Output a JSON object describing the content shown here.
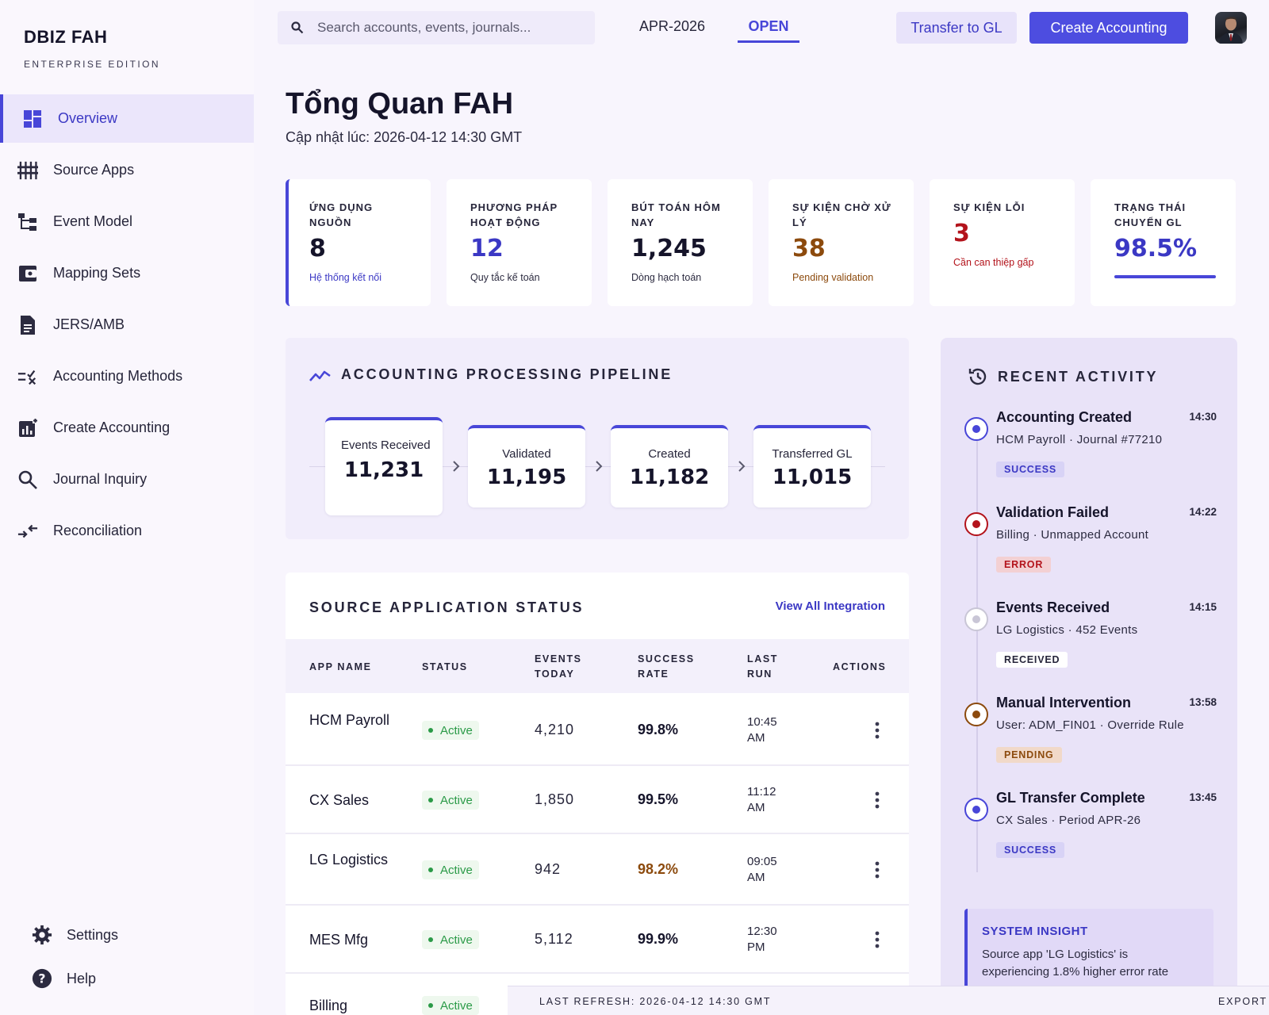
{
  "brand": {
    "name": "DBIZ FAH",
    "edition": "ENTERPRISE EDITION"
  },
  "sidebar": {
    "items": [
      {
        "label": "Overview",
        "icon": "dashboard-icon",
        "active": true
      },
      {
        "label": "Source Apps",
        "icon": "sliders-icon"
      },
      {
        "label": "Event Model",
        "icon": "hierarchy-icon"
      },
      {
        "label": "Mapping Sets",
        "icon": "wallet-icon"
      },
      {
        "label": "JERS/AMB",
        "icon": "document-icon"
      },
      {
        "label": "Accounting Methods",
        "icon": "rule-check-icon"
      },
      {
        "label": "Create Accounting",
        "icon": "chart-add-icon"
      },
      {
        "label": "Journal Inquiry",
        "icon": "search-icon"
      },
      {
        "label": "Reconciliation",
        "icon": "compare-arrows-icon"
      }
    ],
    "bottom": [
      {
        "label": "Settings",
        "icon": "gear-icon"
      },
      {
        "label": "Help",
        "icon": "help-icon"
      }
    ]
  },
  "topbar": {
    "search_placeholder": "Search accounts, events, journals...",
    "period": "APR-2026",
    "period_status": "OPEN",
    "transfer_label": "Transfer to GL",
    "create_label": "Create Accounting"
  },
  "header": {
    "title": "Tổng Quan FAH",
    "updated": "Cập nhật lúc: 2026-04-12 14:30 GMT"
  },
  "kpis": [
    {
      "label": "Ứng dụng nguồn",
      "value": "8",
      "note": "Hệ thống kết nối",
      "value_color": "#15142a",
      "note_color": "#3b38c4"
    },
    {
      "label": "Phương pháp hoạt động",
      "value": "12",
      "note": "Quy tắc kế toán",
      "value_color": "#3b38c4",
      "note_color": "#2c2b40"
    },
    {
      "label": "Bút toán hôm nay",
      "value": "1,245",
      "note": "Dòng hạch toán",
      "value_color": "#15142a",
      "note_color": "#2c2b40"
    },
    {
      "label": "Sự kiện chờ xử lý",
      "value": "38",
      "note": "Pending validation",
      "value_color": "#8c4a0d",
      "note_color": "#8c4a0d"
    },
    {
      "label": "Sự kiện lỗi",
      "value": "3",
      "note": "Cần can thiệp gấp",
      "value_color": "#b3131b",
      "note_color": "#b3131b"
    },
    {
      "label": "Trạng thái chuyển GL",
      "value": "98.5%",
      "value_color": "#3b38c4",
      "progress": 98.5
    }
  ],
  "pipeline": {
    "title": "ACCOUNTING PROCESSING PIPELINE",
    "stages": [
      {
        "label": "Events Received",
        "value": "11,231"
      },
      {
        "label": "Validated",
        "value": "11,195"
      },
      {
        "label": "Created",
        "value": "11,182"
      },
      {
        "label": "Transferred GL",
        "value": "11,015"
      }
    ]
  },
  "sources": {
    "title": "SOURCE APPLICATION STATUS",
    "view_all": "View All Integration",
    "columns": [
      "APP NAME",
      "STATUS",
      "EVENTS TODAY",
      "SUCCESS RATE",
      "LAST RUN",
      "ACTIONS"
    ],
    "rows": [
      {
        "name": "HCM Payroll",
        "status": "Active",
        "events": "4,210",
        "rate": "99.8%",
        "rate_color": "#15142a",
        "last_run": "10:45 AM"
      },
      {
        "name": "CX Sales",
        "status": "Active",
        "events": "1,850",
        "rate": "99.5%",
        "rate_color": "#15142a",
        "last_run": "11:12 AM"
      },
      {
        "name": "LG Logistics",
        "status": "Active",
        "events": "942",
        "rate": "98.2%",
        "rate_color": "#8c4a0d",
        "last_run": "09:05 AM"
      },
      {
        "name": "MES Mfg",
        "status": "Active",
        "events": "5,112",
        "rate": "99.9%",
        "rate_color": "#15142a",
        "last_run": "12:30 PM"
      },
      {
        "name": "Billing",
        "status": "Active",
        "events": "",
        "rate": "",
        "rate_color": "#15142a",
        "last_run": ""
      }
    ]
  },
  "activity": {
    "title": "RECENT ACTIVITY",
    "items": [
      {
        "title": "Accounting Created",
        "time": "14:30",
        "sub": "HCM Payroll · Journal #77210",
        "badge": "SUCCESS",
        "dot_color": "#4846d8",
        "badge_bg": "#d8d3f6",
        "badge_fg": "#3b38c4"
      },
      {
        "title": "Validation Failed",
        "time": "14:22",
        "sub": "Billing · Unmapped Account",
        "badge": "ERROR",
        "dot_color": "#b3131b",
        "badge_bg": "#f3d0d3",
        "badge_fg": "#b3131b"
      },
      {
        "title": "Events Received",
        "time": "14:15",
        "sub": "LG Logistics · 452 Events",
        "badge": "RECEIVED",
        "dot_color": "#c9c6d6",
        "badge_bg": "#ffffff",
        "badge_fg": "#26253a"
      },
      {
        "title": "Manual Intervention",
        "time": "13:58",
        "sub": "User: ADM_FIN01 · Override Rule",
        "badge": "PENDING",
        "dot_color": "#8c4a0d",
        "badge_bg": "#f1d9c9",
        "badge_fg": "#8c4a0d"
      },
      {
        "title": "GL Transfer Complete",
        "time": "13:45",
        "sub": "CX Sales · Period APR-26",
        "badge": "SUCCESS",
        "dot_color": "#4846d8",
        "badge_bg": "#d8d3f6",
        "badge_fg": "#3b38c4"
      }
    ],
    "insight_title": "SYSTEM INSIGHT",
    "insight_text": "Source app 'LG Logistics' is experiencing 1.8% higher error rate"
  },
  "footer": {
    "refresh": "LAST REFRESH: 2026-04-12 14:30 GMT",
    "export": "EXPORT"
  }
}
